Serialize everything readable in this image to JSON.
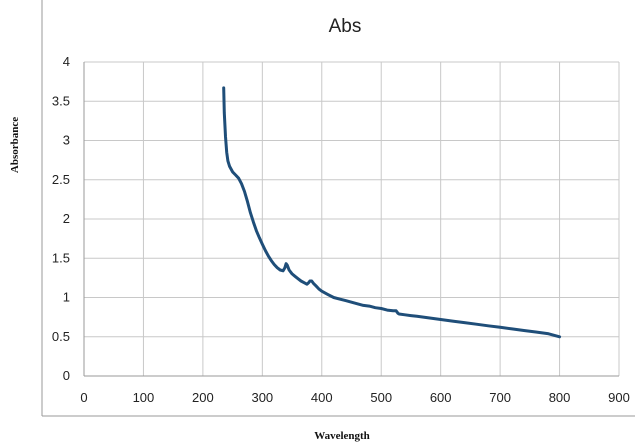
{
  "chart_data": {
    "type": "line",
    "title": "Abs",
    "xlabel": "Wavelength",
    "ylabel": "Absorbance",
    "xlim": [
      0,
      900
    ],
    "ylim": [
      0,
      4
    ],
    "xticks": [
      0,
      100,
      200,
      300,
      400,
      500,
      600,
      700,
      800,
      900
    ],
    "yticks": [
      0,
      0.5,
      1,
      1.5,
      2,
      2.5,
      3,
      3.5,
      4
    ],
    "grid": true,
    "legend": "none",
    "series": [
      {
        "color": "#1f4e79",
        "x": [
          235,
          236,
          238,
          240,
          242,
          245,
          250,
          255,
          260,
          265,
          270,
          275,
          280,
          285,
          290,
          295,
          300,
          305,
          310,
          315,
          320,
          325,
          330,
          335,
          338,
          340,
          342,
          345,
          350,
          355,
          360,
          365,
          370,
          375,
          378,
          380,
          383,
          386,
          390,
          395,
          400,
          410,
          420,
          430,
          440,
          450,
          460,
          470,
          480,
          490,
          500,
          510,
          520,
          525,
          528,
          530,
          540,
          550,
          560,
          580,
          600,
          620,
          640,
          660,
          680,
          700,
          720,
          740,
          760,
          780,
          790,
          800
        ],
        "y": [
          3.67,
          3.35,
          3.05,
          2.85,
          2.74,
          2.67,
          2.6,
          2.56,
          2.52,
          2.45,
          2.35,
          2.22,
          2.08,
          1.96,
          1.85,
          1.76,
          1.68,
          1.6,
          1.53,
          1.47,
          1.42,
          1.38,
          1.35,
          1.34,
          1.38,
          1.43,
          1.41,
          1.35,
          1.3,
          1.27,
          1.24,
          1.21,
          1.19,
          1.17,
          1.19,
          1.21,
          1.21,
          1.18,
          1.15,
          1.11,
          1.08,
          1.04,
          1.0,
          0.98,
          0.96,
          0.94,
          0.92,
          0.9,
          0.89,
          0.87,
          0.86,
          0.84,
          0.83,
          0.83,
          0.8,
          0.79,
          0.78,
          0.77,
          0.76,
          0.74,
          0.72,
          0.7,
          0.68,
          0.66,
          0.64,
          0.62,
          0.6,
          0.58,
          0.56,
          0.54,
          0.52,
          0.5
        ]
      }
    ]
  }
}
